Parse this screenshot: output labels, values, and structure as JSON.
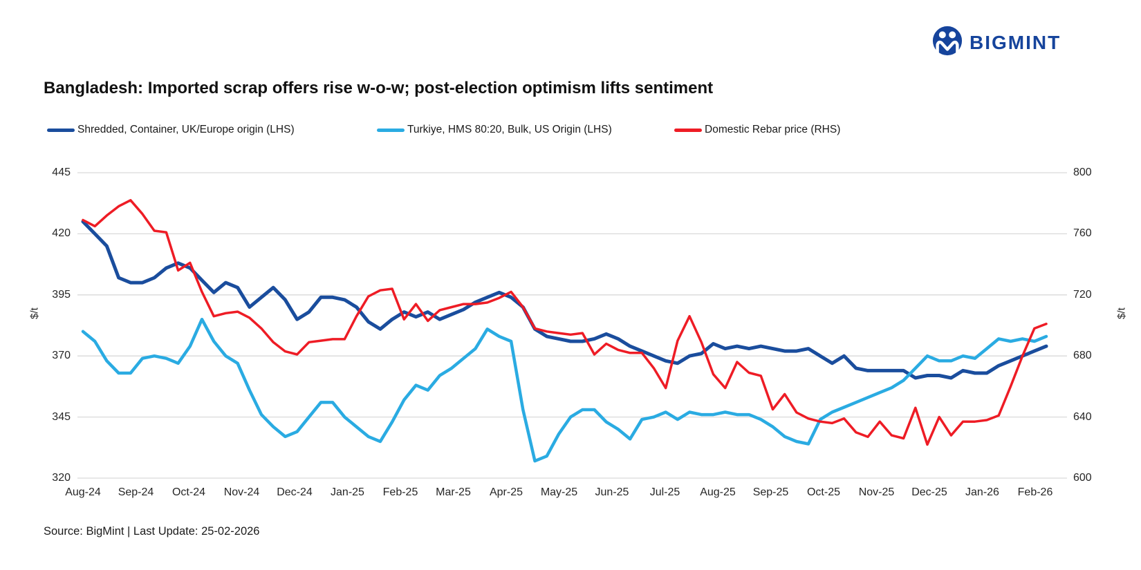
{
  "logo": {
    "text": "BIGMINT",
    "color": "#16449c"
  },
  "title": "Bangladesh: Imported scrap offers rise w-o-w; post-election optimism lifts sentiment",
  "legend": [
    {
      "label": "Shredded, Container, UK/Europe origin (LHS)",
      "color": "#1a4d9d"
    },
    {
      "label": "Turkiye, HMS 80:20, Bulk, US Origin (LHS)",
      "color": "#2aabe2"
    },
    {
      "label": "Domestic Rebar price (RHS)",
      "color": "#ee1c25"
    }
  ],
  "source": "Source: BigMint | Last Update: 25-02-2026",
  "axes": {
    "left_label": "$/t",
    "right_label": "$/t",
    "left_ticks": [
      445,
      420,
      395,
      370,
      345,
      320
    ],
    "right_ticks": [
      800,
      760,
      720,
      680,
      640,
      600
    ],
    "left_range": [
      320,
      445
    ],
    "right_range": [
      600,
      800
    ],
    "months": [
      "Aug-24",
      "Sep-24",
      "Oct-24",
      "Nov-24",
      "Dec-24",
      "Jan-25",
      "Feb-25",
      "Mar-25",
      "Apr-25",
      "May-25",
      "Jun-25",
      "Jul-25",
      "Aug-25",
      "Sep-25",
      "Oct-25",
      "Nov-25",
      "Dec-25",
      "Jan-26",
      "Feb-26"
    ],
    "grid_color": "#d9d9d9"
  },
  "chart_data": {
    "type": "line",
    "x_unit": "weekly points from Aug-2024 to Feb-2026",
    "categories_monthly": [
      "Aug-24",
      "Sep-24",
      "Oct-24",
      "Nov-24",
      "Dec-24",
      "Jan-25",
      "Feb-25",
      "Mar-25",
      "Apr-25",
      "May-25",
      "Jun-25",
      "Jul-25",
      "Aug-25",
      "Sep-25",
      "Oct-25",
      "Nov-25",
      "Dec-25",
      "Jan-26",
      "Feb-26"
    ],
    "ylabel_left": "$/t",
    "ylabel_right": "$/t",
    "ylim_left": [
      320,
      445
    ],
    "ylim_right": [
      600,
      800
    ],
    "grid": "horizontal",
    "legend_position": "top",
    "series": [
      {
        "name": "Shredded, Container, UK/Europe origin (LHS)",
        "axis": "left",
        "color": "#1a4d9d",
        "stroke_width": 5,
        "values": [
          425,
          420,
          415,
          402,
          400,
          400,
          402,
          406,
          408,
          406,
          401,
          396,
          400,
          398,
          390,
          394,
          398,
          393,
          385,
          388,
          394,
          394,
          393,
          390,
          384,
          381,
          385,
          388,
          386,
          388,
          385,
          387,
          389,
          392,
          394,
          396,
          394,
          390,
          381,
          378,
          377,
          376,
          376,
          377,
          379,
          377,
          374,
          372,
          370,
          368,
          367,
          370,
          371,
          375,
          373,
          374,
          373,
          374,
          373,
          372,
          372,
          373,
          370,
          367,
          370,
          365,
          364,
          364,
          364,
          364,
          361,
          362,
          362,
          361,
          364,
          363,
          363,
          366,
          368,
          370,
          372,
          374
        ]
      },
      {
        "name": "Turkiye, HMS 80:20, Bulk, US Origin (LHS)",
        "axis": "left",
        "color": "#2aabe2",
        "stroke_width": 4.5,
        "values": [
          380,
          376,
          368,
          363,
          363,
          369,
          370,
          369,
          367,
          374,
          385,
          376,
          370,
          367,
          356,
          346,
          341,
          337,
          339,
          345,
          351,
          351,
          345,
          341,
          337,
          335,
          343,
          352,
          358,
          356,
          362,
          365,
          369,
          373,
          381,
          378,
          376,
          348,
          327,
          329,
          338,
          345,
          348,
          348,
          343,
          340,
          336,
          344,
          345,
          347,
          344,
          347,
          346,
          346,
          347,
          346,
          346,
          344,
          341,
          337,
          335,
          334,
          344,
          347,
          349,
          351,
          353,
          355,
          357,
          360,
          365,
          370,
          368,
          368,
          370,
          369,
          373,
          377,
          376,
          377,
          376,
          378
        ]
      },
      {
        "name": "Domestic Rebar price (RHS)",
        "axis": "right",
        "color": "#ee1c25",
        "stroke_width": 3.5,
        "values": [
          769,
          765,
          772,
          778,
          782,
          773,
          762,
          761,
          736,
          741,
          722,
          706,
          708,
          709,
          705,
          698,
          689,
          683,
          681,
          689,
          690,
          691,
          691,
          706,
          719,
          723,
          724,
          704,
          714,
          703,
          710,
          712,
          714,
          714,
          715,
          718,
          722,
          712,
          698,
          696,
          695,
          694,
          695,
          681,
          688,
          684,
          682,
          682,
          672,
          659,
          690,
          706,
          689,
          668,
          659,
          676,
          669,
          667,
          645,
          655,
          643,
          639,
          637,
          636,
          639,
          630,
          627,
          637,
          628,
          626,
          646,
          622,
          640,
          628,
          637,
          637,
          638,
          641,
          660,
          680,
          698,
          701
        ]
      }
    ]
  }
}
